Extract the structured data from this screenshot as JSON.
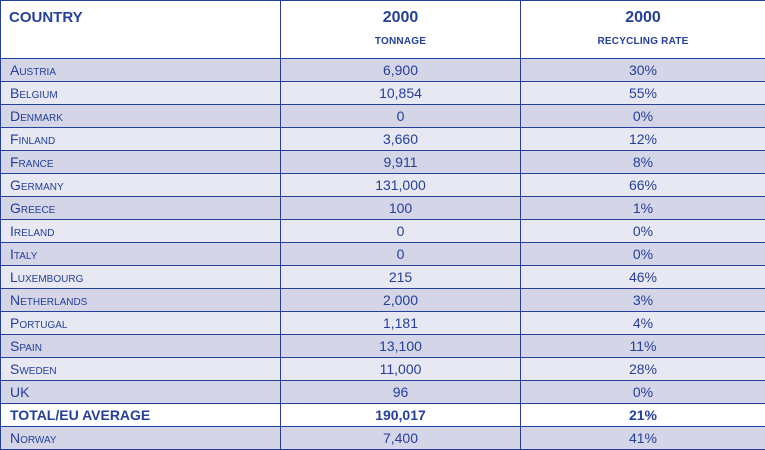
{
  "chart_data": {
    "type": "table",
    "columns": [
      {
        "label": "COUNTRY",
        "sub": ""
      },
      {
        "label": "2000",
        "sub": "TONNAGE"
      },
      {
        "label": "2000",
        "sub": "RECYCLING RATE"
      }
    ],
    "rows": [
      {
        "country": "Austria",
        "tonnage": "6,900",
        "rate": "30%"
      },
      {
        "country": "Belgium",
        "tonnage": "10,854",
        "rate": "55%"
      },
      {
        "country": "Denmark",
        "tonnage": "0",
        "rate": "0%"
      },
      {
        "country": "Finland",
        "tonnage": "3,660",
        "rate": "12%"
      },
      {
        "country": "France",
        "tonnage": "9,911",
        "rate": "8%"
      },
      {
        "country": "Germany",
        "tonnage": "131,000",
        "rate": "66%"
      },
      {
        "country": "Greece",
        "tonnage": "100",
        "rate": "1%"
      },
      {
        "country": "Ireland",
        "tonnage": "0",
        "rate": "0%"
      },
      {
        "country": "Italy",
        "tonnage": "0",
        "rate": "0%"
      },
      {
        "country": "Luxembourg",
        "tonnage": "215",
        "rate": "46%"
      },
      {
        "country": "Netherlands",
        "tonnage": "2,000",
        "rate": "3%"
      },
      {
        "country": "Portugal",
        "tonnage": "1,181",
        "rate": "4%"
      },
      {
        "country": "Spain",
        "tonnage": "13,100",
        "rate": "11%"
      },
      {
        "country": "Sweden",
        "tonnage": "11,000",
        "rate": "28%"
      },
      {
        "country": "UK",
        "tonnage": "96",
        "rate": "0%"
      },
      {
        "country": "TOTAL/EU AVERAGE",
        "tonnage": "190,017",
        "rate": "21%",
        "total": true
      },
      {
        "country": "Norway",
        "tonnage": "7,400",
        "rate": "41%"
      }
    ],
    "colors": {
      "text": "#25409a",
      "row_shade_a": "#d4d5e6",
      "row_shade_b": "#e7e8f1",
      "header_bg": "#ffffff"
    }
  }
}
